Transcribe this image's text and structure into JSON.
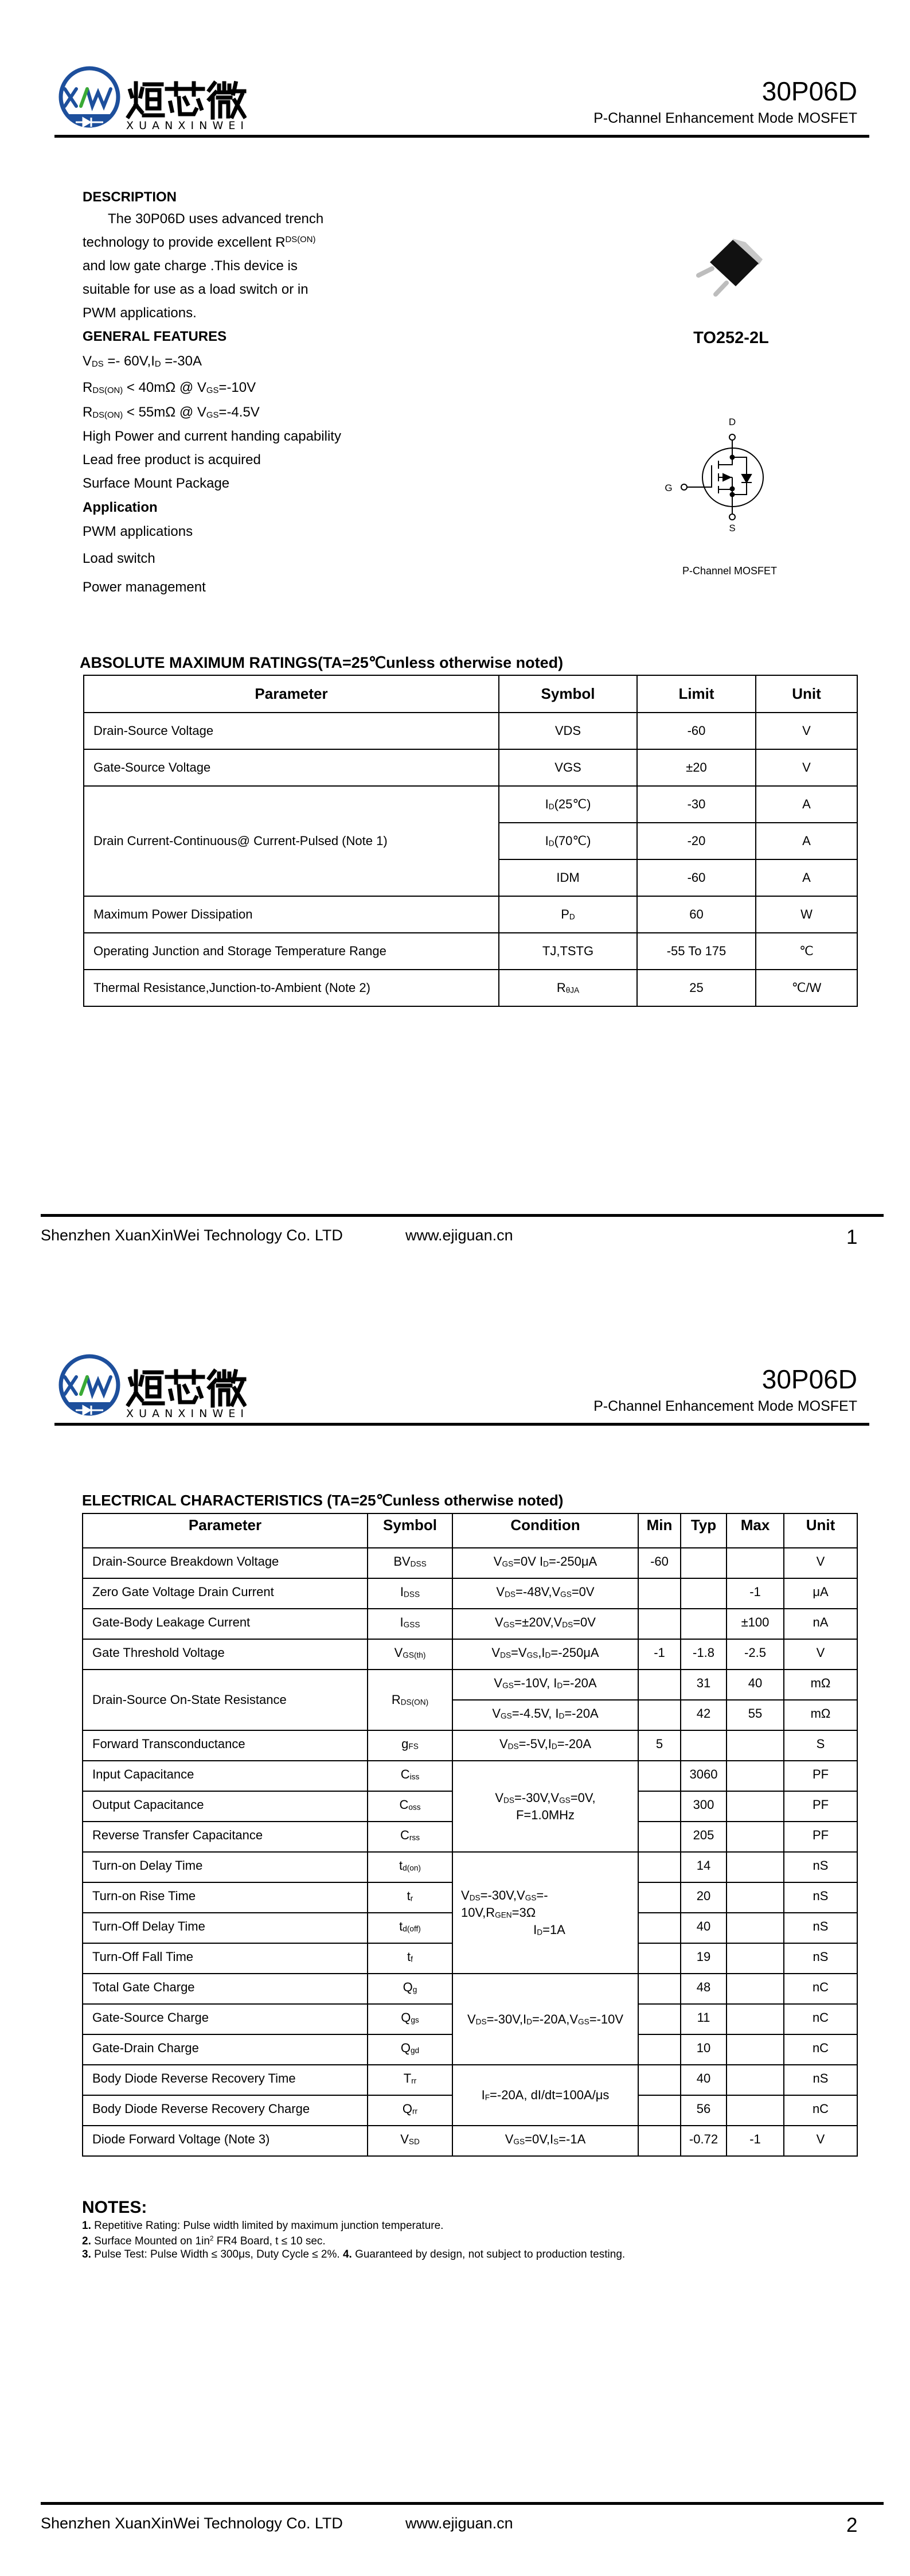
{
  "header": {
    "part_number": "30P06D",
    "subtitle": "P-Channel Enhancement Mode MOSFET",
    "logo": {
      "mark": "XVW",
      "cn": "烜芯微",
      "en": "XUANXINWEI"
    }
  },
  "colors": {
    "logo_blue": "#1d4f9c",
    "logo_green": "#3aaa35",
    "text": "#000000"
  },
  "description": [
    {
      "type": "heading",
      "text": [
        "DESCRIPTION"
      ]
    },
    {
      "type": "indent",
      "text": [
        "The  30P06D  uses advanced trench"
      ]
    },
    {
      "type": "text",
      "text": [
        "technology to provide excellent R",
        {
          "sup": "DS(ON)"
        }
      ]
    },
    {
      "type": "text",
      "text": [
        "and low gate charge .This device is"
      ]
    },
    {
      "type": "text",
      "text": [
        "suitable for use as a load switch or in"
      ]
    },
    {
      "type": "text",
      "text": [
        "PWM applications."
      ]
    },
    {
      "type": "heading",
      "text": [
        "GENERAL FEATURES"
      ]
    },
    {
      "type": "text",
      "text": [
        "V",
        {
          "sub": "DS"
        },
        " =- 60V,I",
        {
          "sub": "D"
        },
        " =-30A"
      ]
    },
    {
      "type": "text",
      "text": [
        "R",
        {
          "sub": "DS(ON)"
        },
        " < 40mΩ @ V",
        {
          "sub": "GS"
        },
        "=-10V"
      ]
    },
    {
      "type": "text",
      "text": [
        "R",
        {
          "sub": "DS(ON)"
        },
        " < 55mΩ @ V",
        {
          "sub": "GS"
        },
        "=-4.5V"
      ]
    },
    {
      "type": "text",
      "text": [
        "High Power and current handing capability"
      ]
    },
    {
      "type": "text",
      "text": [
        "Lead free product is acquired"
      ]
    },
    {
      "type": "text",
      "text": [
        "Surface Mount Package"
      ]
    },
    {
      "type": "heading",
      "text": [
        "Application"
      ]
    },
    {
      "type": "text",
      "text": [
        "PWM applications"
      ]
    },
    {
      "type": "text",
      "text": [
        "Load switch"
      ]
    },
    {
      "type": "text",
      "text": [
        "Power management"
      ]
    }
  ],
  "package": {
    "name": "TO252-2L",
    "symbol_caption": "P-Channel MOSFET",
    "pins": {
      "drain": "D",
      "gate": "G",
      "source": "S"
    }
  },
  "abs_max": {
    "title": "ABSOLUTE MAXIMUM RATINGS(TA=25℃unless otherwise noted)",
    "columns": [
      "Parameter",
      "Symbol",
      "Limit",
      "Unit"
    ],
    "rows": [
      {
        "parameter": "Drain-Source Voltage",
        "symbol": "VDS",
        "limit": "-60",
        "unit": "V"
      },
      {
        "parameter": "Gate-Source Voltage",
        "symbol": "VGS",
        "limit": "±20",
        "unit": "V"
      },
      {
        "parameter": "Drain Current-Continuous@ Current-Pulsed (Note 1)",
        "span": {
          "parameter": 3
        },
        "symbol": [
          "I",
          {
            "sub": "D"
          },
          "(25℃)"
        ],
        "limit": "-30",
        "unit": "A"
      },
      {
        "symbol": [
          "I",
          {
            "sub": "D"
          },
          "(70℃)"
        ],
        "limit": "-20",
        "unit": "A"
      },
      {
        "symbol": "IDM",
        "limit": "-60",
        "unit": "A"
      },
      {
        "parameter": "Maximum Power Dissipation",
        "symbol": [
          "P",
          {
            "sub": "D"
          }
        ],
        "limit": "60",
        "unit": "W"
      },
      {
        "parameter": "Operating Junction and Storage Temperature Range",
        "symbol": "TJ,TSTG",
        "limit": "-55 To 175",
        "unit": "℃"
      },
      {
        "parameter": "Thermal Resistance,Junction-to-Ambient (Note 2)",
        "symbol": [
          "R",
          {
            "sub": "θJA"
          }
        ],
        "limit": "25",
        "unit": "℃/W"
      }
    ]
  },
  "electrical": {
    "title": "ELECTRICAL CHARACTERISTICS (TA=25℃unless otherwise noted)",
    "columns": [
      "Parameter",
      "Symbol",
      "Condition",
      "Min",
      "Typ",
      "Max",
      "Unit"
    ],
    "rows": [
      {
        "parameter": "Drain-Source Breakdown Voltage",
        "symbol": [
          "BV",
          {
            "sub": "DSS"
          }
        ],
        "condition": [
          "V",
          {
            "sub": "GS"
          },
          "=0V I",
          {
            "sub": "D"
          },
          "=-250μA"
        ],
        "min": "-60",
        "typ": "",
        "max": "",
        "unit": "V"
      },
      {
        "parameter": "Zero Gate Voltage Drain Current",
        "symbol": [
          "I",
          {
            "sub": "DSS"
          }
        ],
        "condition": [
          "V",
          {
            "sub": "DS"
          },
          "=-48V,V",
          {
            "sub": "GS"
          },
          "=0V"
        ],
        "min": "",
        "typ": "",
        "max": "-1",
        "unit": "μA"
      },
      {
        "parameter": "Gate-Body Leakage Current",
        "symbol": [
          "I",
          {
            "sub": "GSS"
          }
        ],
        "condition": [
          "V",
          {
            "sub": "GS"
          },
          "=±20V,V",
          {
            "sub": "DS"
          },
          "=0V"
        ],
        "min": "",
        "typ": "",
        "max": "±100",
        "unit": "nA"
      },
      {
        "parameter": "Gate Threshold Voltage",
        "symbol": [
          "V",
          {
            "sub": "GS(th)"
          }
        ],
        "condition": [
          "V",
          {
            "sub": "DS"
          },
          "=V",
          {
            "sub": "GS"
          },
          ",I",
          {
            "sub": "D"
          },
          "=-250μA"
        ],
        "min": "-1",
        "typ": "-1.8",
        "max": "-2.5",
        "unit": "V"
      },
      {
        "parameter": "Drain-Source On-State Resistance",
        "span": {
          "parameter": 2,
          "symbol": 2
        },
        "symbol": [
          "R",
          {
            "sub": "DS(ON)"
          }
        ],
        "condition": [
          "V",
          {
            "sub": "GS"
          },
          "=-10V, I",
          {
            "sub": "D"
          },
          "=-20A"
        ],
        "min": "",
        "typ": "31",
        "max": "40",
        "unit": "mΩ"
      },
      {
        "condition": [
          "V",
          {
            "sub": "GS"
          },
          "=-4.5V, I",
          {
            "sub": "D"
          },
          "=-20A"
        ],
        "min": "",
        "typ": "42",
        "max": "55",
        "unit": "mΩ"
      },
      {
        "parameter": "Forward Transconductance",
        "symbol": [
          "g",
          {
            "sub": "FS"
          }
        ],
        "condition": [
          "V",
          {
            "sub": "DS"
          },
          "=-5V,I",
          {
            "sub": "D"
          },
          "=-20A"
        ],
        "min": "5",
        "typ": "",
        "max": "",
        "unit": "S"
      },
      {
        "parameter": "Input Capacitance",
        "symbol": [
          "C",
          {
            "sub": "iss"
          }
        ],
        "span": {
          "condition": 3
        },
        "condition": {
          "lines": [
            [
              "V",
              {
                "sub": "DS"
              },
              "=-30V,V",
              {
                "sub": "GS"
              },
              "=0V,"
            ],
            [
              "F=1.0MHz"
            ]
          ]
        },
        "min": "",
        "typ": "3060",
        "max": "",
        "unit": "PF"
      },
      {
        "parameter": "Output Capacitance",
        "symbol": [
          "C",
          {
            "sub": "oss"
          }
        ],
        "min": "",
        "typ": "300",
        "max": "",
        "unit": "PF"
      },
      {
        "parameter": "Reverse Transfer Capacitance",
        "symbol": [
          "C",
          {
            "sub": "rss"
          }
        ],
        "min": "",
        "typ": "205",
        "max": "",
        "unit": "PF"
      },
      {
        "parameter": "Turn-on Delay Time",
        "symbol": [
          "t",
          {
            "sub": "d(on)"
          }
        ],
        "span": {
          "condition": 4
        },
        "condition": {
          "lines": [
            [
              "V",
              {
                "sub": "DS"
              },
              "=-30V,V",
              {
                "sub": "GS"
              },
              "=-"
            ],
            [
              "10V,R",
              {
                "sub": "GEN"
              },
              "=3Ω"
            ],
            [
              "I",
              {
                "sub": "D"
              },
              "=1A"
            ]
          ]
        },
        "min": "",
        "typ": "14",
        "max": "",
        "unit": "nS"
      },
      {
        "parameter": "Turn-on Rise Time",
        "symbol": [
          "t",
          {
            "sub": "r"
          }
        ],
        "min": "",
        "typ": "20",
        "max": "",
        "unit": "nS"
      },
      {
        "parameter": "Turn-Off Delay Time",
        "symbol": [
          "t",
          {
            "sub": "d(off)"
          }
        ],
        "min": "",
        "typ": "40",
        "max": "",
        "unit": "nS"
      },
      {
        "parameter": "Turn-Off Fall Time",
        "symbol": [
          "t",
          {
            "sub": "f"
          }
        ],
        "min": "",
        "typ": "19",
        "max": "",
        "unit": "nS"
      },
      {
        "parameter": "Total Gate Charge",
        "symbol": [
          "Q",
          {
            "sub": "g"
          }
        ],
        "span": {
          "condition": 3
        },
        "condition": [
          "V",
          {
            "sub": "DS"
          },
          "=-30V,I",
          {
            "sub": "D"
          },
          "=-20A,V",
          {
            "sub": "GS"
          },
          "=-10V"
        ],
        "min": "",
        "typ": "48",
        "max": "",
        "unit": "nC"
      },
      {
        "parameter": "Gate-Source Charge",
        "symbol": [
          "Q",
          {
            "sub": "gs"
          }
        ],
        "min": "",
        "typ": "11",
        "max": "",
        "unit": "nC"
      },
      {
        "parameter": "Gate-Drain Charge",
        "symbol": [
          "Q",
          {
            "sub": "gd"
          }
        ],
        "min": "",
        "typ": "10",
        "max": "",
        "unit": "nC"
      },
      {
        "parameter": "Body Diode Reverse Recovery Time",
        "symbol": [
          "T",
          {
            "sub": "rr"
          }
        ],
        "span": {
          "condition": 2
        },
        "condition": [
          "I",
          {
            "sub": "F"
          },
          "=-20A, dI/dt=100A/μs"
        ],
        "min": "",
        "typ": "40",
        "max": "",
        "unit": "nS"
      },
      {
        "parameter": "Body Diode Reverse Recovery Charge",
        "symbol": [
          "Q",
          {
            "sub": "rr"
          }
        ],
        "min": "",
        "typ": "56",
        "max": "",
        "unit": "nC"
      },
      {
        "parameter": "Diode Forward Voltage (Note 3)",
        "symbol": [
          "V",
          {
            "sub": "SD"
          }
        ],
        "condition": [
          "V",
          {
            "sub": "GS"
          },
          "=0V,I",
          {
            "sub": "S"
          },
          "=-1A"
        ],
        "min": "",
        "typ": "-0.72",
        "max": "-1",
        "unit": "V"
      }
    ]
  },
  "notes": {
    "title": "NOTES:",
    "items": [
      [
        {
          "b": "1."
        },
        " Repetitive Rating: Pulse width limited by maximum junction temperature."
      ],
      [
        {
          "b": "2."
        },
        " Surface Mounted on 1in",
        {
          "sup": "2"
        },
        " FR4 Board, t ≤ 10 sec."
      ],
      [
        {
          "b": "3."
        },
        " Pulse Test: Pulse Width ≤ 300μs, Duty Cycle ≤ 2%. ",
        {
          "b": "4."
        },
        " Guaranteed by design, not subject to production testing."
      ]
    ]
  },
  "footer": {
    "company": "Shenzhen XuanXinWei Technology Co. LTD",
    "website": "www.ejiguan.cn",
    "pages": [
      "1",
      "2"
    ]
  }
}
